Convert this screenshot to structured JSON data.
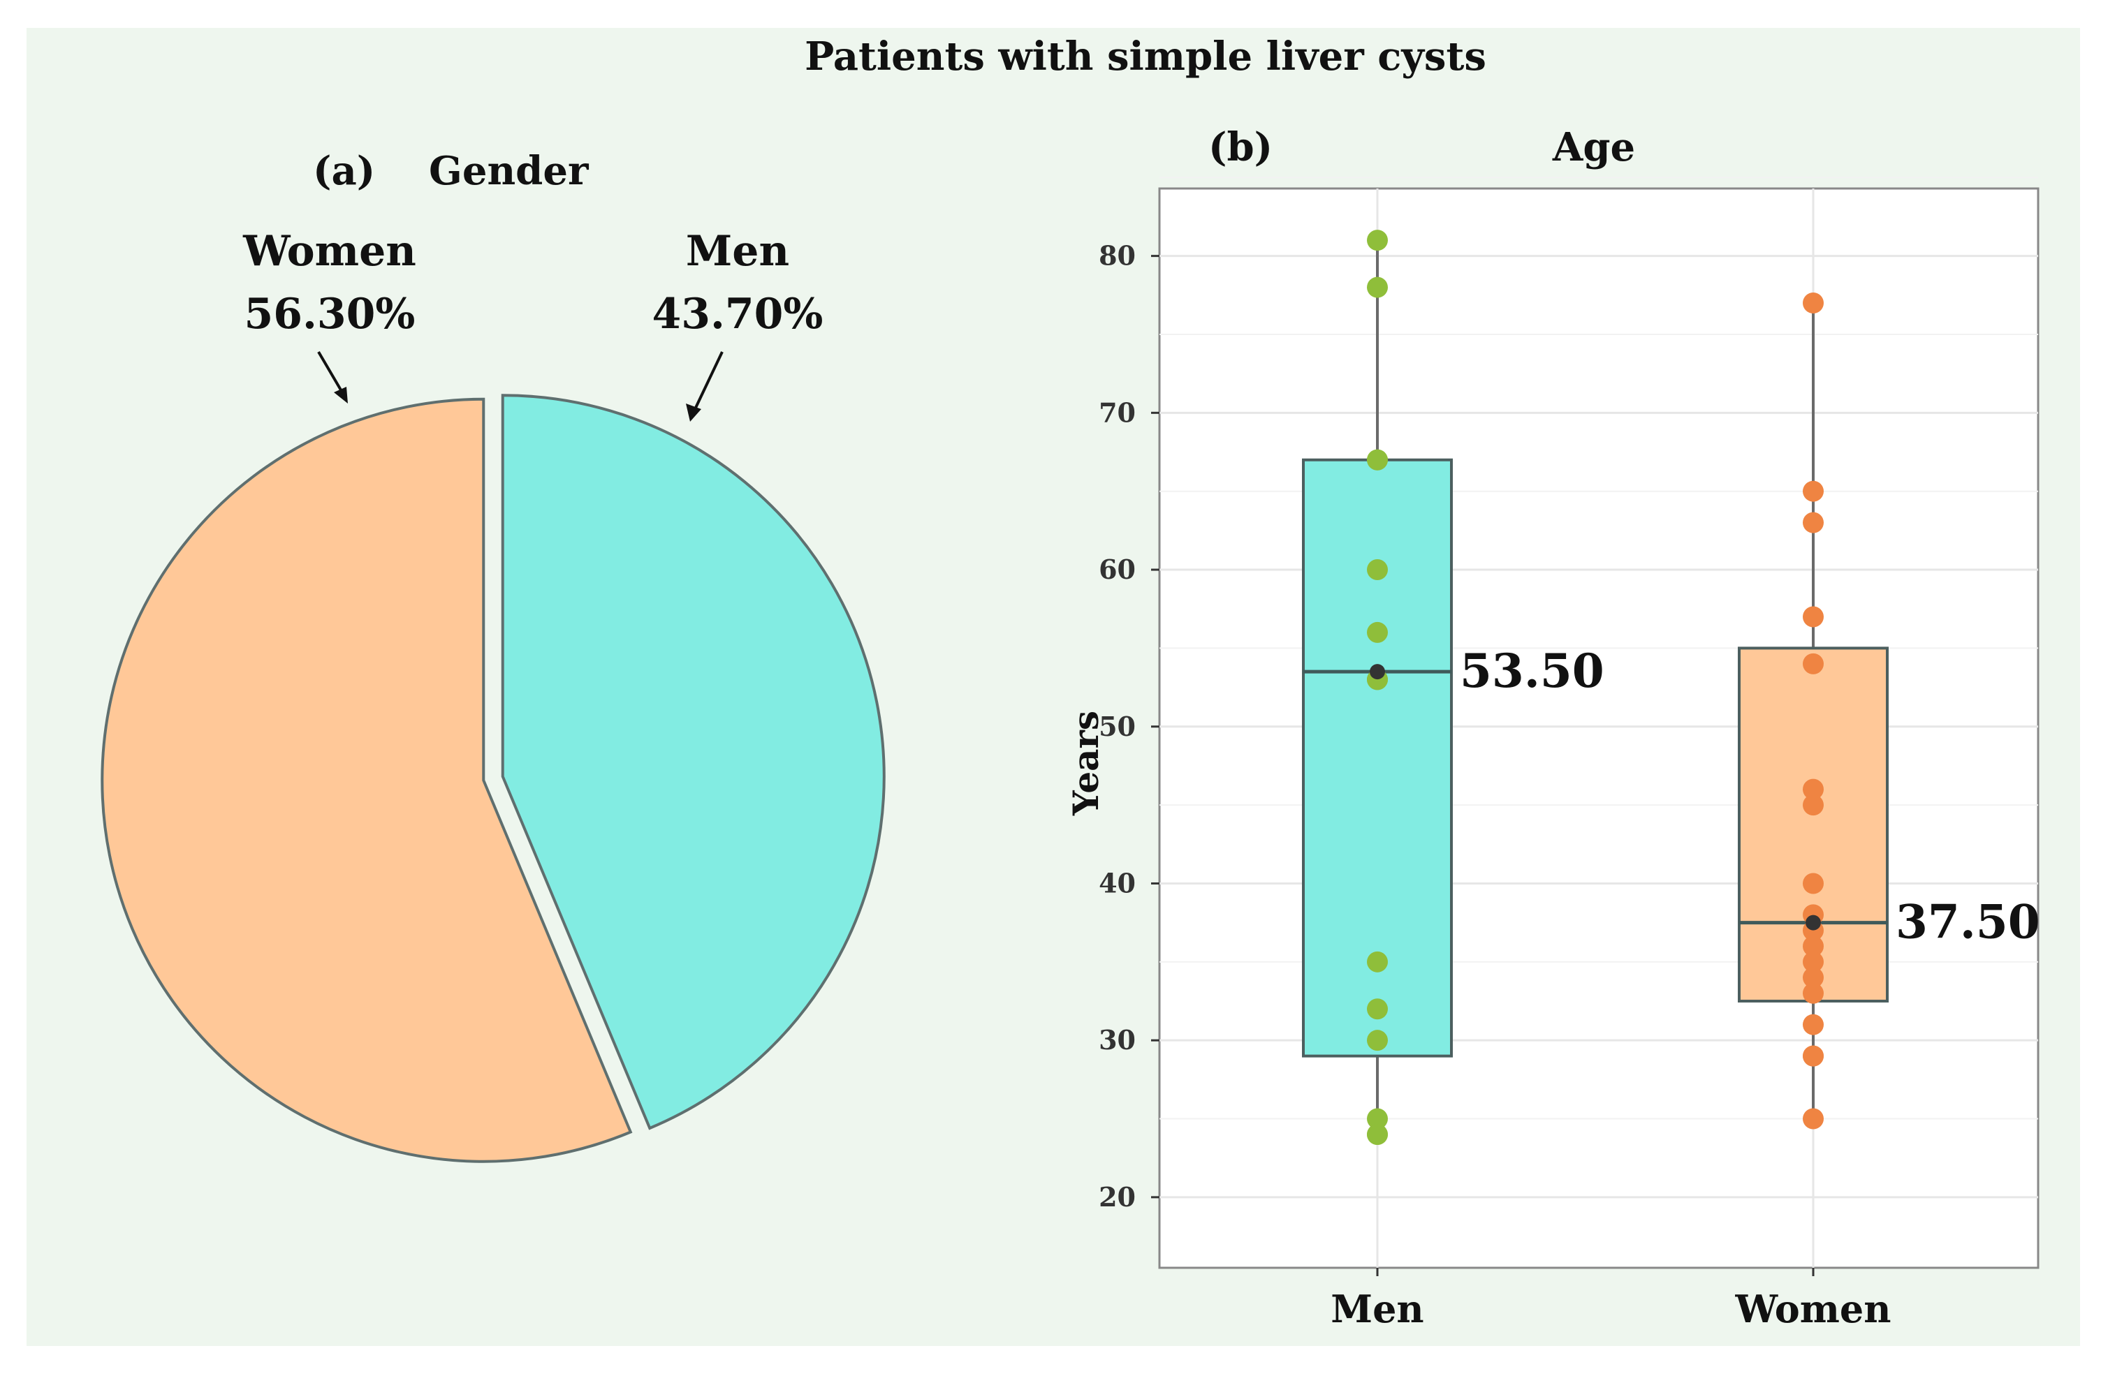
{
  "figure": {
    "title": "Patients with simple liver cysts",
    "background_color": "#eef6ee"
  },
  "chart_data": [
    {
      "type": "pie",
      "panel_label": "(a)",
      "title": "Gender",
      "slices": [
        {
          "label": "Women",
          "value": 56.3,
          "display": "56.30%",
          "color": "#ffc898"
        },
        {
          "label": "Men",
          "value": 43.7,
          "display": "43.70%",
          "color": "#82ece2"
        }
      ],
      "stroke_color": "#5f6f6f",
      "label_annotations": "arrows pointing to slices"
    },
    {
      "type": "box",
      "panel_label": "(b)",
      "title": "Age",
      "xlabel": "",
      "ylabel": "Years",
      "ylim": [
        15.5,
        84.3
      ],
      "yticks": [
        20,
        30,
        40,
        50,
        60,
        70,
        80
      ],
      "grid": true,
      "categories": [
        "Men",
        "Women"
      ],
      "series": [
        {
          "name": "Men",
          "box_color": "#82ece2",
          "point_color": "#8fbe3a",
          "q1": 29,
          "median": 53.5,
          "median_label": "53.50",
          "q3": 67,
          "whisker_low": 24,
          "whisker_high": 81,
          "points": [
            81,
            78,
            67,
            67,
            60,
            56,
            53,
            53,
            35,
            32,
            30,
            25,
            24,
            24
          ]
        },
        {
          "name": "Women",
          "box_color": "#ffc898",
          "point_color": "#ef8442",
          "q1": 32.5,
          "median": 37.5,
          "median_label": "37.50",
          "q3": 55,
          "whisker_low": 25,
          "whisker_high": 77,
          "points": [
            77,
            65,
            63,
            57,
            54,
            46,
            45,
            40,
            38,
            37,
            36,
            35,
            34,
            33,
            31,
            29,
            29,
            25
          ]
        }
      ]
    }
  ]
}
